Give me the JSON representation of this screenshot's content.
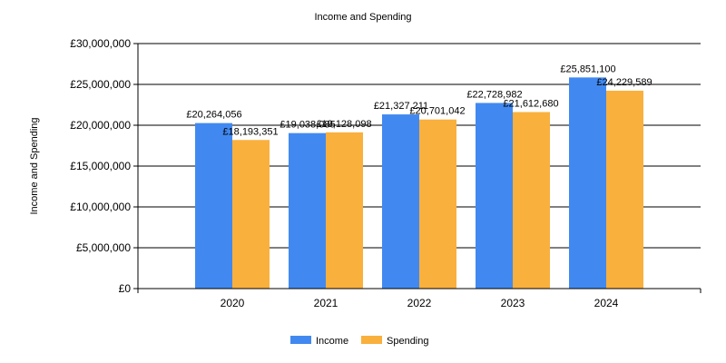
{
  "chart_data": {
    "type": "bar",
    "title": "Income and Spending",
    "ylabel": "Income and Spending",
    "xlabel": "",
    "categories": [
      "2020",
      "2021",
      "2022",
      "2023",
      "2024"
    ],
    "series": [
      {
        "name": "Income",
        "color": "#4189F0",
        "values": [
          20264056,
          19038085,
          21327211,
          22728982,
          25851100
        ],
        "labels": [
          "£20,264,056",
          "£19,038,085",
          "£21,327,211",
          "£22,728,982",
          "£25,851,100"
        ]
      },
      {
        "name": "Spending",
        "color": "#F9B03D",
        "values": [
          18193351,
          19128098,
          20701042,
          21612680,
          24229589
        ],
        "labels": [
          "£18,193,351",
          "£19,128,098",
          "£20,701,042",
          "£21,612,680",
          "£24,229,589"
        ]
      }
    ],
    "ylim": [
      0,
      30000000
    ],
    "yticks": [
      0,
      5000000,
      10000000,
      15000000,
      20000000,
      25000000,
      30000000
    ],
    "ytick_labels": [
      "£0",
      "£5,000,000",
      "£10,000,000",
      "£15,000,000",
      "£20,000,000",
      "£25,000,000",
      "£30,000,000"
    ],
    "grid": true,
    "legend": "bottom-center"
  }
}
